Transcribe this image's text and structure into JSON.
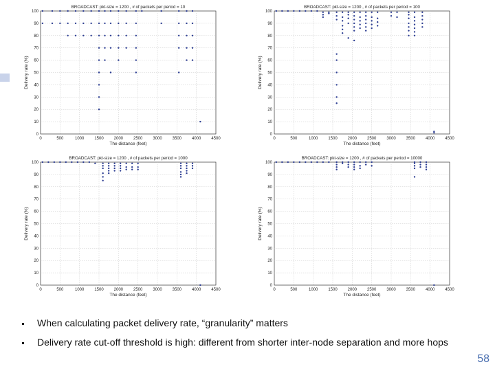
{
  "chart_data": [
    {
      "type": "scatter",
      "title": "BROADCAST: pkt-size = 1200 , # of packets per period = 10",
      "xlabel": "The distance (feet)",
      "ylabel": "Delivery rate (%)",
      "xlim": [
        0,
        4500
      ],
      "ylim": [
        0,
        100
      ],
      "xticks": [
        "0",
        "500",
        "1000",
        "1500",
        "2000",
        "2500",
        "3000",
        "3500",
        "4000",
        "4500"
      ],
      "yticks": [
        "0",
        "10",
        "20",
        "30",
        "40",
        "50",
        "60",
        "70",
        "80",
        "90",
        "100"
      ],
      "grid": true,
      "points": [
        [
          50,
          100
        ],
        [
          300,
          100
        ],
        [
          500,
          100
        ],
        [
          700,
          100
        ],
        [
          900,
          100
        ],
        [
          1100,
          100
        ],
        [
          1300,
          100
        ],
        [
          1500,
          100
        ],
        [
          1650,
          100
        ],
        [
          1800,
          100
        ],
        [
          2000,
          100
        ],
        [
          2200,
          100
        ],
        [
          2450,
          100
        ],
        [
          2600,
          100
        ],
        [
          3100,
          100
        ],
        [
          3550,
          100
        ],
        [
          3750,
          100
        ],
        [
          3900,
          100
        ],
        [
          50,
          90
        ],
        [
          300,
          90
        ],
        [
          500,
          90
        ],
        [
          700,
          90
        ],
        [
          900,
          90
        ],
        [
          1100,
          90
        ],
        [
          1300,
          90
        ],
        [
          1500,
          90
        ],
        [
          1650,
          90
        ],
        [
          1800,
          90
        ],
        [
          2000,
          90
        ],
        [
          2200,
          90
        ],
        [
          2450,
          90
        ],
        [
          3100,
          90
        ],
        [
          3550,
          90
        ],
        [
          3750,
          90
        ],
        [
          3900,
          90
        ],
        [
          700,
          80
        ],
        [
          900,
          80
        ],
        [
          1100,
          80
        ],
        [
          1300,
          80
        ],
        [
          1500,
          80
        ],
        [
          1650,
          80
        ],
        [
          1800,
          80
        ],
        [
          2000,
          80
        ],
        [
          2200,
          80
        ],
        [
          2450,
          80
        ],
        [
          3550,
          80
        ],
        [
          3750,
          80
        ],
        [
          3900,
          80
        ],
        [
          1500,
          70
        ],
        [
          1650,
          70
        ],
        [
          1800,
          70
        ],
        [
          2000,
          70
        ],
        [
          2200,
          70
        ],
        [
          2450,
          70
        ],
        [
          3550,
          70
        ],
        [
          3750,
          70
        ],
        [
          3900,
          70
        ],
        [
          1500,
          60
        ],
        [
          1650,
          60
        ],
        [
          2000,
          60
        ],
        [
          2450,
          60
        ],
        [
          3750,
          60
        ],
        [
          3900,
          60
        ],
        [
          1500,
          50
        ],
        [
          1800,
          50
        ],
        [
          2450,
          50
        ],
        [
          3550,
          50
        ],
        [
          1500,
          40
        ],
        [
          1500,
          30
        ],
        [
          1500,
          20
        ],
        [
          4100,
          10
        ]
      ]
    },
    {
      "type": "scatter",
      "title": "BROADCAST: pkt-size = 1200 , # of packets per period = 100",
      "xlabel": "The distance (feet)",
      "ylabel": "Delivery rate (%)",
      "xlim": [
        0,
        4500
      ],
      "ylim": [
        0,
        100
      ],
      "xticks": [
        "0",
        "500",
        "1000",
        "1500",
        "2000",
        "2500",
        "3000",
        "3500",
        "4000",
        "4500"
      ],
      "yticks": [
        "0",
        "10",
        "20",
        "30",
        "40",
        "50",
        "60",
        "70",
        "80",
        "90",
        "100"
      ],
      "grid": true,
      "points": [
        [
          50,
          100
        ],
        [
          200,
          100
        ],
        [
          350,
          100
        ],
        [
          500,
          100
        ],
        [
          650,
          100
        ],
        [
          800,
          100
        ],
        [
          950,
          100
        ],
        [
          1100,
          100
        ],
        [
          1250,
          99
        ],
        [
          1400,
          99
        ],
        [
          1600,
          99
        ],
        [
          1750,
          99
        ],
        [
          1900,
          99
        ],
        [
          2050,
          99
        ],
        [
          2200,
          99
        ],
        [
          2350,
          99
        ],
        [
          2500,
          99
        ],
        [
          2650,
          99
        ],
        [
          3000,
          99
        ],
        [
          3150,
          99
        ],
        [
          3450,
          99
        ],
        [
          3600,
          99
        ],
        [
          3800,
          99
        ],
        [
          1250,
          97
        ],
        [
          1400,
          98
        ],
        [
          1600,
          96
        ],
        [
          1750,
          95
        ],
        [
          1900,
          97
        ],
        [
          2050,
          96
        ],
        [
          2200,
          95
        ],
        [
          2350,
          96
        ],
        [
          2500,
          95
        ],
        [
          2650,
          94
        ],
        [
          3000,
          96
        ],
        [
          3150,
          95
        ],
        [
          3450,
          97
        ],
        [
          3600,
          95
        ],
        [
          3800,
          96
        ],
        [
          1250,
          95
        ],
        [
          1600,
          93
        ],
        [
          1750,
          92
        ],
        [
          1900,
          94
        ],
        [
          2050,
          93
        ],
        [
          2200,
          92
        ],
        [
          2350,
          93
        ],
        [
          2500,
          92
        ],
        [
          2650,
          91
        ],
        [
          3450,
          94
        ],
        [
          3600,
          92
        ],
        [
          3800,
          93
        ],
        [
          1750,
          88
        ],
        [
          1900,
          90
        ],
        [
          2050,
          90
        ],
        [
          2200,
          89
        ],
        [
          2350,
          90
        ],
        [
          2500,
          89
        ],
        [
          2650,
          88
        ],
        [
          3450,
          90
        ],
        [
          3600,
          89
        ],
        [
          3800,
          90
        ],
        [
          1750,
          85
        ],
        [
          2050,
          87
        ],
        [
          2200,
          86
        ],
        [
          2350,
          87
        ],
        [
          2500,
          86
        ],
        [
          3450,
          87
        ],
        [
          3600,
          86
        ],
        [
          3800,
          87
        ],
        [
          1750,
          82
        ],
        [
          2050,
          84
        ],
        [
          2350,
          84
        ],
        [
          3450,
          84
        ],
        [
          3600,
          83
        ],
        [
          1900,
          78
        ],
        [
          2050,
          76
        ],
        [
          3450,
          80
        ],
        [
          3600,
          80
        ],
        [
          1600,
          65
        ],
        [
          1600,
          60
        ],
        [
          1600,
          50
        ],
        [
          1600,
          40
        ],
        [
          1600,
          30
        ],
        [
          1600,
          25
        ],
        [
          4100,
          2
        ],
        [
          4100,
          1
        ]
      ]
    },
    {
      "type": "scatter",
      "title": "BROADCAST: pkt-size = 1200 , # of packets per period = 1000",
      "xlabel": "The distance (feet)",
      "ylabel": "Delivery rate (%)",
      "xlim": [
        0,
        4500
      ],
      "ylim": [
        0,
        100
      ],
      "xticks": [
        "0",
        "500",
        "1000",
        "1500",
        "2000",
        "2500",
        "3000",
        "3500",
        "4000",
        "4500"
      ],
      "yticks": [
        "0",
        "10",
        "20",
        "30",
        "40",
        "50",
        "60",
        "70",
        "80",
        "90",
        "100"
      ],
      "grid": true,
      "points": [
        [
          50,
          100
        ],
        [
          200,
          100
        ],
        [
          350,
          100
        ],
        [
          500,
          100
        ],
        [
          650,
          100
        ],
        [
          800,
          100
        ],
        [
          950,
          100
        ],
        [
          1100,
          100
        ],
        [
          1250,
          100
        ],
        [
          1400,
          99
        ],
        [
          1600,
          99
        ],
        [
          1750,
          99
        ],
        [
          1900,
          99
        ],
        [
          2050,
          99
        ],
        [
          2200,
          99
        ],
        [
          2350,
          99
        ],
        [
          2500,
          99
        ],
        [
          3600,
          99
        ],
        [
          3750,
          99
        ],
        [
          3900,
          99
        ],
        [
          1600,
          97
        ],
        [
          1750,
          97
        ],
        [
          1900,
          97
        ],
        [
          2050,
          97
        ],
        [
          2200,
          96
        ],
        [
          2350,
          96
        ],
        [
          2500,
          96
        ],
        [
          3600,
          97
        ],
        [
          3750,
          97
        ],
        [
          3900,
          97
        ],
        [
          1600,
          95
        ],
        [
          1750,
          95
        ],
        [
          1900,
          95
        ],
        [
          2050,
          95
        ],
        [
          2200,
          94
        ],
        [
          2350,
          94
        ],
        [
          2500,
          94
        ],
        [
          3600,
          95
        ],
        [
          3750,
          95
        ],
        [
          3900,
          95
        ],
        [
          1600,
          91
        ],
        [
          1750,
          93
        ],
        [
          1900,
          93
        ],
        [
          2050,
          93
        ],
        [
          3600,
          92
        ],
        [
          3750,
          93
        ],
        [
          1600,
          88
        ],
        [
          1750,
          91
        ],
        [
          3600,
          90
        ],
        [
          3750,
          91
        ],
        [
          1600,
          85
        ],
        [
          3600,
          88
        ],
        [
          4100,
          0
        ]
      ]
    },
    {
      "type": "scatter",
      "title": "BROADCAST: pkt-size = 1200 , # of packets per period = 10000",
      "xlabel": "The distance (feet)",
      "ylabel": "Delivery rate (%)",
      "xlim": [
        0,
        4500
      ],
      "ylim": [
        0,
        100
      ],
      "xticks": [
        "0",
        "500",
        "1000",
        "1500",
        "2000",
        "2500",
        "3000",
        "3500",
        "4000",
        "4500"
      ],
      "yticks": [
        "0",
        "10",
        "20",
        "30",
        "40",
        "50",
        "60",
        "70",
        "80",
        "90",
        "100"
      ],
      "grid": true,
      "points": [
        [
          50,
          100
        ],
        [
          200,
          100
        ],
        [
          350,
          100
        ],
        [
          500,
          100
        ],
        [
          650,
          100
        ],
        [
          800,
          100
        ],
        [
          950,
          100
        ],
        [
          1100,
          100
        ],
        [
          1250,
          100
        ],
        [
          1400,
          100
        ],
        [
          1600,
          100
        ],
        [
          1750,
          100
        ],
        [
          1900,
          100
        ],
        [
          2050,
          100
        ],
        [
          2200,
          100
        ],
        [
          2350,
          100
        ],
        [
          2500,
          100
        ],
        [
          3600,
          100
        ],
        [
          3750,
          100
        ],
        [
          3900,
          100
        ],
        [
          1600,
          98
        ],
        [
          1750,
          99
        ],
        [
          1900,
          98
        ],
        [
          2050,
          98
        ],
        [
          2200,
          97
        ],
        [
          2350,
          98
        ],
        [
          2500,
          97
        ],
        [
          3600,
          99
        ],
        [
          3750,
          98
        ],
        [
          3900,
          98
        ],
        [
          1600,
          96
        ],
        [
          1900,
          96
        ],
        [
          2050,
          96
        ],
        [
          2200,
          95
        ],
        [
          3600,
          97
        ],
        [
          3750,
          96
        ],
        [
          3900,
          96
        ],
        [
          1600,
          94
        ],
        [
          2050,
          94
        ],
        [
          3600,
          95
        ],
        [
          3900,
          94
        ],
        [
          3600,
          88
        ],
        [
          4100,
          0
        ]
      ]
    }
  ],
  "bullets": [
    "When calculating packet delivery rate, “granularity” matters",
    "Delivery rate cut-off threshold is high: different from shorter inter-node separation and more hops"
  ],
  "page_number": "58",
  "colors": {
    "marker": "#2e3f93",
    "grid": "#c8c8c8",
    "axis": "#333333",
    "page_number": "#4a6fb0"
  }
}
